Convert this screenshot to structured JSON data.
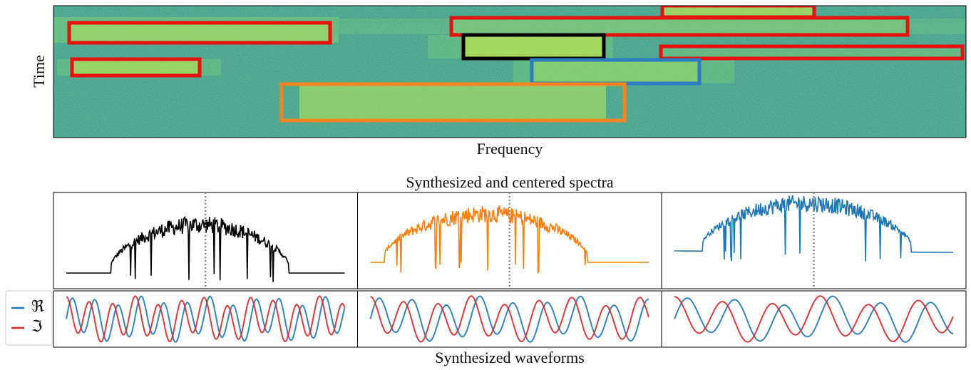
{
  "spectrogram": {
    "xlabel": "Frequency",
    "ylabel": "Time"
  },
  "spectra": {
    "title": "Synthesized and centered spectra",
    "colors": [
      "#000000",
      "#ff7f0e",
      "#1f77b4"
    ]
  },
  "waveforms": {
    "title": "Synthesized waveforms"
  },
  "legend": {
    "items": [
      {
        "label": "ℜ",
        "color": "#1f77b4"
      },
      {
        "label": "ℑ",
        "color": "#d62728"
      }
    ]
  }
}
